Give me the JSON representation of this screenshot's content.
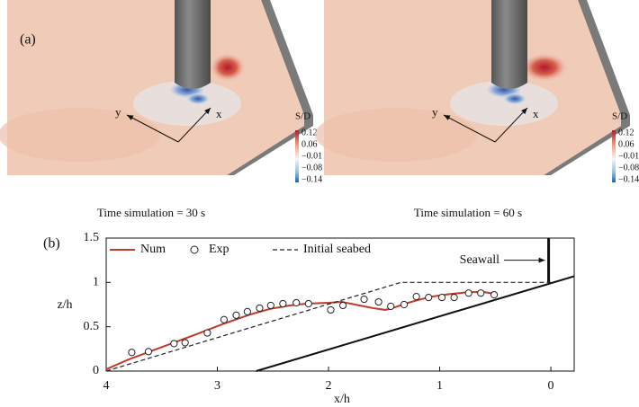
{
  "panel_a": {
    "label": "(a)",
    "views": [
      {
        "caption": "Time simulation = 30 s",
        "x_label": "x",
        "y_label": "y"
      },
      {
        "caption": "Time simulation = 60 s",
        "x_label": "x",
        "y_label": "y"
      }
    ],
    "colorbar": {
      "title": "S/D",
      "ticks": [
        "0.12",
        "0.06",
        "−0.01",
        "−0.08",
        "−0.14"
      ]
    }
  },
  "chart_data": {
    "type": "line",
    "panel_label": "(b)",
    "x_label": "x/h",
    "y_label": "z/h",
    "xlim": [
      4,
      -0.21
    ],
    "ylim": [
      0,
      1.5
    ],
    "xticks": [
      4,
      3,
      2,
      1,
      0
    ],
    "yticks": [
      0,
      0.5,
      1,
      1.5
    ],
    "series": [
      {
        "name": "Num",
        "color": "#c0392b",
        "style": "line",
        "x": [
          4,
          3.8,
          3.5,
          3.2,
          2.93,
          2.7,
          2.53,
          2.35,
          2.2,
          2.0,
          1.88,
          1.72,
          1.6,
          1.49,
          1.4,
          1.31,
          1.2,
          1.07,
          0.9,
          0.74,
          0.6,
          0.5
        ],
        "values": [
          0.02,
          0.13,
          0.27,
          0.41,
          0.54,
          0.64,
          0.7,
          0.74,
          0.76,
          0.77,
          0.78,
          0.74,
          0.71,
          0.69,
          0.72,
          0.76,
          0.8,
          0.84,
          0.87,
          0.89,
          0.89,
          0.87
        ]
      },
      {
        "name": "Exp",
        "color": "#222222",
        "style": "marker",
        "x": [
          3.77,
          3.62,
          3.39,
          3.29,
          3.09,
          2.94,
          2.83,
          2.73,
          2.62,
          2.52,
          2.41,
          2.29,
          2.18,
          1.98,
          1.87,
          1.68,
          1.55,
          1.44,
          1.32,
          1.21,
          1.1,
          0.98,
          0.87,
          0.74,
          0.63,
          0.51
        ],
        "values": [
          0.21,
          0.22,
          0.31,
          0.32,
          0.43,
          0.58,
          0.63,
          0.67,
          0.71,
          0.74,
          0.76,
          0.77,
          0.76,
          0.69,
          0.74,
          0.81,
          0.78,
          0.73,
          0.75,
          0.84,
          0.83,
          0.83,
          0.83,
          0.88,
          0.88,
          0.86
        ]
      },
      {
        "name": "Initial seabed",
        "color": "#222222",
        "style": "dashed",
        "x": [
          4,
          1.35,
          0
        ],
        "values": [
          0,
          1,
          1
        ]
      }
    ],
    "seawall": {
      "text": "Seawall",
      "x": [
        0.02,
        0.02
      ],
      "y": [
        1,
        1.5
      ]
    },
    "revetment": {
      "x": [
        2.65,
        -0.21
      ],
      "y": [
        0,
        1.07
      ]
    }
  }
}
